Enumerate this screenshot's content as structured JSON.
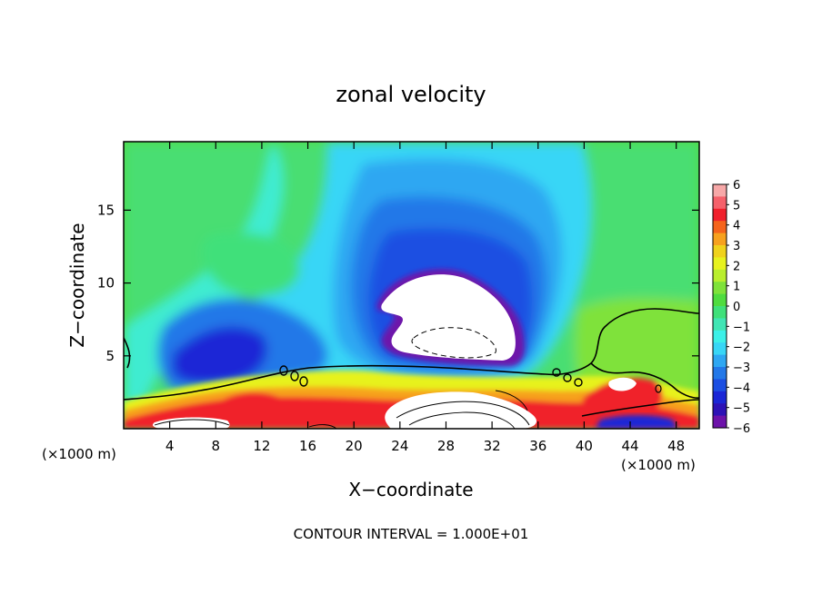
{
  "chart_data": {
    "type": "heatmap",
    "title": "zonal velocity",
    "xlabel": "X−coordinate",
    "ylabel": "Z−coordinate",
    "x_unit": "(×1000 m)",
    "y_unit": "(×1000 m)",
    "footer": "CONTOUR INTERVAL = 1.000E+01",
    "xlim": [
      0,
      50
    ],
    "ylim": [
      0,
      19.7
    ],
    "xticks": [
      4,
      8,
      12,
      16,
      20,
      24,
      28,
      32,
      36,
      40,
      44,
      48
    ],
    "yticks": [
      5,
      10,
      15
    ],
    "colorbar": {
      "min": -6,
      "max": 6,
      "ticks": [
        "6",
        "5",
        "4",
        "3",
        "2",
        "1",
        "0",
        "−1",
        "−2",
        "−3",
        "−4",
        "−5",
        "−6"
      ],
      "colors": [
        "#f7a8a8",
        "#f5616b",
        "#f0202c",
        "#f5641c",
        "#f7a11e",
        "#f0d21c",
        "#e7f21e",
        "#b9ee2d",
        "#7fe23a",
        "#4fdc3f",
        "#3fe07a",
        "#40e5b4",
        "#3cf0e8",
        "#38d6f6",
        "#2ea7f2",
        "#2378e8",
        "#1c4fe2",
        "#1a26d6",
        "#2d12b6",
        "#6d12aa"
      ]
    },
    "features": [
      {
        "name": "lower reversed-flow core",
        "x": 28,
        "z": 8.5,
        "value_min": -6
      },
      {
        "name": "upper strong negative region",
        "x": 28,
        "z": 12.5,
        "value": -5
      },
      {
        "name": "left negative lobe",
        "x": 8,
        "z": 4.5,
        "value": -5
      },
      {
        "name": "right positive surface region",
        "x": 46,
        "z": 4.5,
        "value": 1
      },
      {
        "name": "low-level jet",
        "x": 12,
        "z": 1.5,
        "value": 5
      }
    ]
  }
}
